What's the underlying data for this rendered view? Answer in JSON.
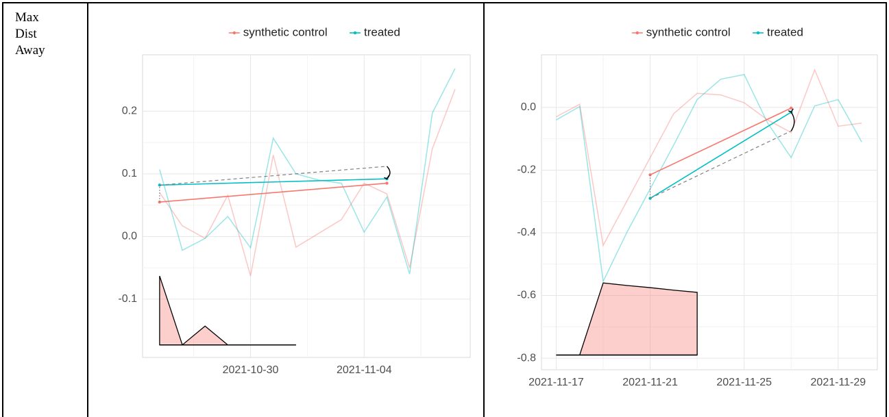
{
  "row_label": "Max Dist Away",
  "chart_data": [
    {
      "type": "line",
      "x": [
        "2021-10-26",
        "2021-10-27",
        "2021-10-28",
        "2021-10-29",
        "2021-10-30",
        "2021-10-31",
        "2021-11-01",
        "2021-11-02",
        "2021-11-03",
        "2021-11-04",
        "2021-11-05",
        "2021-11-06",
        "2021-11-07",
        "2021-11-08"
      ],
      "series": [
        {
          "name": "synthetic control",
          "color": "#F8766D",
          "values": [
            0.07,
            0.017,
            -0.003,
            0.066,
            -0.063,
            0.13,
            -0.017,
            0.005,
            0.027,
            0.085,
            0.068,
            -0.05,
            0.14,
            0.235
          ]
        },
        {
          "name": "treated",
          "color": "#00BFC4",
          "values": [
            0.107,
            -0.022,
            -0.003,
            0.032,
            -0.018,
            0.157,
            0.1,
            0.09,
            0.085,
            0.007,
            0.063,
            -0.06,
            0.197,
            0.268
          ]
        }
      ],
      "segments": [
        {
          "color": "#F8766D",
          "x": [
            "2021-10-26",
            "2021-11-05"
          ],
          "values": [
            0.055,
            0.085
          ]
        },
        {
          "color": "#00BFC4",
          "x": [
            "2021-10-26",
            "2021-11-05"
          ],
          "values": [
            0.082,
            0.092
          ]
        },
        {
          "color": "#808080",
          "dashed": true,
          "x": [
            "2021-10-26",
            "2021-11-05"
          ],
          "values": [
            0.082,
            0.112
          ]
        }
      ],
      "inset": {
        "color": "#F8766D",
        "base": -0.173,
        "x": [
          "2021-10-26",
          "2021-10-27",
          "2021-10-28",
          "2021-10-29",
          "2021-10-30",
          "2021-10-31",
          "2021-11-01"
        ],
        "values": [
          -0.063,
          -0.173,
          -0.143,
          -0.173,
          -0.173,
          -0.173,
          -0.173
        ]
      },
      "xlim": [
        "2021-10-25T06:00",
        "2021-11-08T16:00"
      ],
      "xticks": [
        "2021-10-30",
        "2021-11-04"
      ],
      "ylim": [
        -0.193,
        0.29
      ],
      "yticks": [
        {
          "value": -0.1,
          "label": "-0.1"
        },
        {
          "value": 0,
          "label": "0.0"
        },
        {
          "value": 0.1,
          "label": "0.1"
        },
        {
          "value": 0.2,
          "label": "0.2"
        }
      ],
      "grid": true
    },
    {
      "type": "line",
      "x": [
        "2021-11-17",
        "2021-11-18",
        "2021-11-19",
        "2021-11-20",
        "2021-11-21",
        "2021-11-22",
        "2021-11-23",
        "2021-11-24",
        "2021-11-25",
        "2021-11-26",
        "2021-11-27",
        "2021-11-28",
        "2021-11-29",
        "2021-11-30"
      ],
      "series": [
        {
          "name": "synthetic control",
          "color": "#F8766D",
          "values": [
            -0.03,
            0.01,
            -0.44,
            -0.3,
            -0.16,
            -0.02,
            0.045,
            0.04,
            0.015,
            -0.04,
            -0.08,
            0.12,
            -0.06,
            -0.05
          ]
        },
        {
          "name": "treated",
          "color": "#00BFC4",
          "values": [
            -0.04,
            0.003,
            -0.555,
            -0.4,
            -0.26,
            -0.12,
            0.025,
            0.09,
            0.105,
            -0.05,
            -0.16,
            0.005,
            0.025,
            -0.11
          ]
        }
      ],
      "segments": [
        {
          "color": "#F8766D",
          "x": [
            "2021-11-21",
            "2021-11-27"
          ],
          "values": [
            -0.215,
            -0.002
          ]
        },
        {
          "color": "#00BFC4",
          "x": [
            "2021-11-21",
            "2021-11-27"
          ],
          "values": [
            -0.29,
            -0.015
          ]
        },
        {
          "color": "#808080",
          "dashed": true,
          "x": [
            "2021-11-21",
            "2021-11-27"
          ],
          "values": [
            -0.29,
            -0.075
          ]
        }
      ],
      "inset": {
        "color": "#F8766D",
        "base": -0.79,
        "x": [
          "2021-11-17",
          "2021-11-18",
          "2021-11-19",
          "2021-11-20",
          "2021-11-21",
          "2021-11-22",
          "2021-11-23"
        ],
        "values": [
          -0.79,
          -0.79,
          -0.56,
          -0.568,
          -0.575,
          -0.583,
          -0.59
        ]
      },
      "xlim": [
        "2021-11-16T09:00",
        "2021-11-30T16:00"
      ],
      "xticks": [
        "2021-11-17",
        "2021-11-21",
        "2021-11-25",
        "2021-11-29"
      ],
      "ylim": [
        -0.837,
        0.168
      ],
      "yticks": [
        {
          "value": -0.8,
          "label": "-0.8"
        },
        {
          "value": -0.6,
          "label": "-0.6"
        },
        {
          "value": -0.4,
          "label": "-0.4"
        },
        {
          "value": -0.2,
          "label": "-0.2"
        },
        {
          "value": 0,
          "label": "0.0"
        }
      ],
      "grid": true
    }
  ]
}
